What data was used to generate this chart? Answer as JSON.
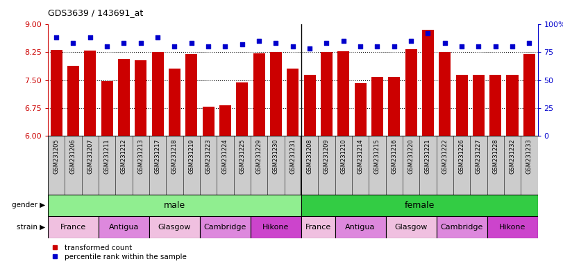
{
  "title": "GDS3639 / 143691_at",
  "samples": [
    "GSM231205",
    "GSM231206",
    "GSM231207",
    "GSM231211",
    "GSM231212",
    "GSM231213",
    "GSM231217",
    "GSM231218",
    "GSM231219",
    "GSM231223",
    "GSM231224",
    "GSM231225",
    "GSM231229",
    "GSM231230",
    "GSM231231",
    "GSM231208",
    "GSM231209",
    "GSM231210",
    "GSM231214",
    "GSM231215",
    "GSM231216",
    "GSM231220",
    "GSM231221",
    "GSM231222",
    "GSM231226",
    "GSM231227",
    "GSM231228",
    "GSM231232",
    "GSM231233"
  ],
  "red_values": [
    8.32,
    7.88,
    8.3,
    7.48,
    8.07,
    8.04,
    8.25,
    7.8,
    8.2,
    6.78,
    6.82,
    7.44,
    8.21,
    8.25,
    7.8,
    7.65,
    8.25,
    8.27,
    7.42,
    7.58,
    7.58,
    8.33,
    8.85,
    8.25,
    7.65,
    7.65,
    7.65,
    7.65,
    8.2
  ],
  "blue_values": [
    88,
    83,
    88,
    80,
    83,
    83,
    88,
    80,
    83,
    80,
    80,
    82,
    85,
    83,
    80,
    78,
    83,
    85,
    80,
    80,
    80,
    85,
    92,
    83,
    80,
    80,
    80,
    80,
    83
  ],
  "gender_groups": [
    {
      "label": "male",
      "start": 0,
      "end": 15,
      "color": "#90EE90"
    },
    {
      "label": "female",
      "start": 15,
      "end": 29,
      "color": "#33CC44"
    }
  ],
  "strain_groups": [
    {
      "label": "France",
      "start": 0,
      "end": 3,
      "color": "#F0C0E0"
    },
    {
      "label": "Antigua",
      "start": 3,
      "end": 6,
      "color": "#DD88DD"
    },
    {
      "label": "Glasgow",
      "start": 6,
      "end": 9,
      "color": "#F0C0E0"
    },
    {
      "label": "Cambridge",
      "start": 9,
      "end": 12,
      "color": "#DD88DD"
    },
    {
      "label": "Hikone",
      "start": 12,
      "end": 15,
      "color": "#CC44CC"
    },
    {
      "label": "France",
      "start": 15,
      "end": 17,
      "color": "#F0C0E0"
    },
    {
      "label": "Antigua",
      "start": 17,
      "end": 20,
      "color": "#DD88DD"
    },
    {
      "label": "Glasgow",
      "start": 20,
      "end": 23,
      "color": "#F0C0E0"
    },
    {
      "label": "Cambridge",
      "start": 23,
      "end": 26,
      "color": "#DD88DD"
    },
    {
      "label": "Hikone",
      "start": 26,
      "end": 29,
      "color": "#CC44CC"
    }
  ],
  "ylim_left": [
    6.0,
    9.0
  ],
  "ylim_right": [
    0,
    100
  ],
  "yticks_left": [
    6.0,
    6.75,
    7.5,
    8.25,
    9.0
  ],
  "yticks_right": [
    0,
    25,
    50,
    75,
    100
  ],
  "bar_color": "#CC0000",
  "dot_color": "#0000CC",
  "bar_bottom": 6.0,
  "xtick_bg_color": "#CCCCCC",
  "legend_items": [
    {
      "color": "#CC0000",
      "label": "transformed count"
    },
    {
      "color": "#0000CC",
      "label": "percentile rank within the sample"
    }
  ]
}
